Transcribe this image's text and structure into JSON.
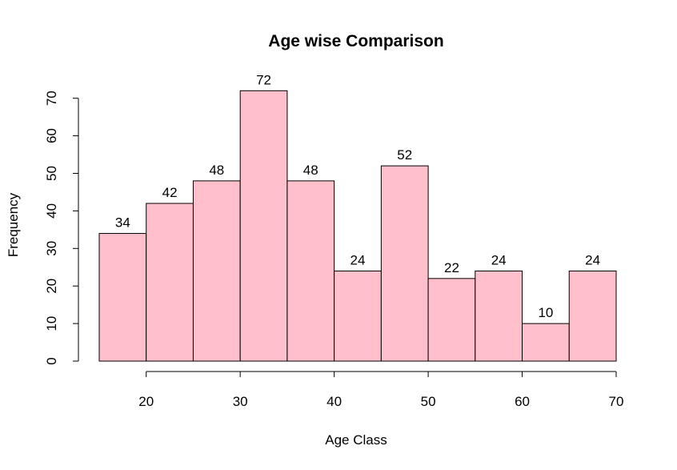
{
  "chart_data": {
    "type": "bar",
    "title": "Age wise Comparison",
    "xlabel": "Age Class",
    "ylabel": "Frequency",
    "bins": [
      [
        15,
        20
      ],
      [
        20,
        25
      ],
      [
        25,
        30
      ],
      [
        30,
        35
      ],
      [
        35,
        40
      ],
      [
        40,
        45
      ],
      [
        45,
        50
      ],
      [
        50,
        55
      ],
      [
        55,
        60
      ],
      [
        60,
        65
      ],
      [
        65,
        70
      ]
    ],
    "values": [
      34,
      42,
      48,
      72,
      48,
      24,
      52,
      22,
      24,
      10,
      24
    ],
    "data_labels": [
      "34",
      "42",
      "48",
      "72",
      "48",
      "24",
      "52",
      "22",
      "24",
      "10",
      "24"
    ],
    "xlim": [
      15,
      70
    ],
    "ylim": [
      0,
      72
    ],
    "x_ticks": [
      "20",
      "30",
      "40",
      "50",
      "60",
      "70"
    ],
    "y_ticks": [
      "0",
      "10",
      "20",
      "30",
      "40",
      "50",
      "60",
      "70"
    ],
    "bar_color": "#FFC0CB",
    "grid": false
  }
}
